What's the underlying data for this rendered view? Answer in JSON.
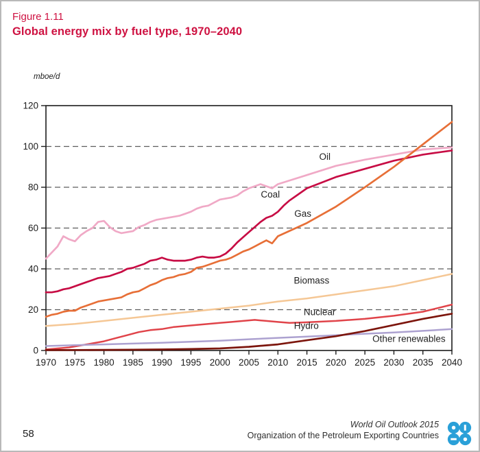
{
  "figure": {
    "label": "Figure 1.11",
    "title": "Global energy mix by fuel type, 1970–2040"
  },
  "page_number": "58",
  "footer": {
    "line1": "World Oil Outlook 2015",
    "line2": "Organization of the Petroleum Exporting Countries",
    "logo": "opec-logo"
  },
  "colors": {
    "title_red": "#ce1141",
    "axis": "#1c1c1c",
    "grid": "#5c5c5c",
    "label_text": "#222222",
    "logo_blue": "#2aa0d8",
    "page_border": "#b9b9b9"
  },
  "chart_data": {
    "type": "line",
    "title": "Global energy mix by fuel type, 1970–2040",
    "xlabel": "",
    "ylabel": "mboe/d",
    "unit_label": "mboe/d",
    "xlim": [
      1970,
      2040
    ],
    "ylim": [
      0,
      120
    ],
    "x_ticks": [
      1970,
      1975,
      1980,
      1985,
      1990,
      1995,
      2000,
      2005,
      2010,
      2015,
      2020,
      2025,
      2030,
      2035,
      2040
    ],
    "y_ticks": [
      0,
      20,
      40,
      60,
      80,
      100,
      120
    ],
    "grid": "horizontal dashed at 20,40,60,80,100; solid box frame",
    "legend_position": "inline-labels",
    "series": [
      {
        "name": "Oil",
        "color": "#f0a9c6",
        "width": 2.7,
        "label_at": {
          "year": 2018.1,
          "value": 93.4
        },
        "points": [
          [
            1970,
            45
          ],
          [
            1971,
            48
          ],
          [
            1972,
            51
          ],
          [
            1973,
            56
          ],
          [
            1974,
            54.5
          ],
          [
            1975,
            53.5
          ],
          [
            1976,
            56.5
          ],
          [
            1977,
            58.5
          ],
          [
            1978,
            60
          ],
          [
            1979,
            63
          ],
          [
            1980,
            63.5
          ],
          [
            1981,
            60.5
          ],
          [
            1982,
            58.5
          ],
          [
            1983,
            57.5
          ],
          [
            1984,
            58
          ],
          [
            1985,
            58.5
          ],
          [
            1986,
            60.5
          ],
          [
            1987,
            61.5
          ],
          [
            1988,
            63
          ],
          [
            1989,
            64
          ],
          [
            1990,
            64.5
          ],
          [
            1991,
            65
          ],
          [
            1992,
            65.5
          ],
          [
            1993,
            66
          ],
          [
            1994,
            67
          ],
          [
            1995,
            68
          ],
          [
            1996,
            69.5
          ],
          [
            1997,
            70.5
          ],
          [
            1998,
            71
          ],
          [
            1999,
            72.5
          ],
          [
            2000,
            74
          ],
          [
            2001,
            74.5
          ],
          [
            2002,
            75
          ],
          [
            2003,
            76
          ],
          [
            2004,
            78
          ],
          [
            2005,
            79.5
          ],
          [
            2006,
            80.5
          ],
          [
            2007,
            81.5
          ],
          [
            2008,
            80.5
          ],
          [
            2009,
            79.5
          ],
          [
            2010,
            81.5
          ],
          [
            2015,
            86
          ],
          [
            2020,
            90.5
          ],
          [
            2025,
            93.5
          ],
          [
            2030,
            96
          ],
          [
            2035,
            98.5
          ],
          [
            2040,
            99.5
          ]
        ]
      },
      {
        "name": "Coal",
        "color": "#c70c44",
        "width": 2.7,
        "label_at": {
          "year": 2008.7,
          "value": 75
        },
        "points": [
          [
            1970,
            28.5
          ],
          [
            1971,
            28.5
          ],
          [
            1972,
            29
          ],
          [
            1973,
            30
          ],
          [
            1974,
            30.5
          ],
          [
            1975,
            31.5
          ],
          [
            1976,
            32.5
          ],
          [
            1977,
            33.5
          ],
          [
            1978,
            34.5
          ],
          [
            1979,
            35.5
          ],
          [
            1980,
            36
          ],
          [
            1981,
            36.5
          ],
          [
            1982,
            37.5
          ],
          [
            1983,
            38.5
          ],
          [
            1984,
            40
          ],
          [
            1985,
            40.5
          ],
          [
            1986,
            41.5
          ],
          [
            1987,
            42.5
          ],
          [
            1988,
            44
          ],
          [
            1989,
            44.5
          ],
          [
            1990,
            45.5
          ],
          [
            1991,
            44.5
          ],
          [
            1992,
            44
          ],
          [
            1993,
            44
          ],
          [
            1994,
            44
          ],
          [
            1995,
            44.5
          ],
          [
            1996,
            45.5
          ],
          [
            1997,
            46
          ],
          [
            1998,
            45.5
          ],
          [
            1999,
            45.5
          ],
          [
            2000,
            46
          ],
          [
            2001,
            47.5
          ],
          [
            2002,
            50
          ],
          [
            2003,
            53
          ],
          [
            2004,
            55.5
          ],
          [
            2005,
            58
          ],
          [
            2006,
            60.5
          ],
          [
            2007,
            63
          ],
          [
            2008,
            65
          ],
          [
            2009,
            66
          ],
          [
            2010,
            68
          ],
          [
            2011,
            71
          ],
          [
            2012,
            73.5
          ],
          [
            2013,
            75.5
          ],
          [
            2015,
            79.5
          ],
          [
            2020,
            85
          ],
          [
            2025,
            89
          ],
          [
            2030,
            93
          ],
          [
            2035,
            96
          ],
          [
            2040,
            98
          ]
        ]
      },
      {
        "name": "Gas",
        "color": "#e76f37",
        "width": 2.7,
        "label_at": {
          "year": 2014.3,
          "value": 65.5
        },
        "points": [
          [
            1970,
            16.5
          ],
          [
            1971,
            17.5
          ],
          [
            1972,
            18
          ],
          [
            1973,
            19
          ],
          [
            1974,
            19.5
          ],
          [
            1975,
            19.5
          ],
          [
            1976,
            21
          ],
          [
            1977,
            22
          ],
          [
            1978,
            23
          ],
          [
            1979,
            24
          ],
          [
            1980,
            24.5
          ],
          [
            1981,
            25
          ],
          [
            1982,
            25.5
          ],
          [
            1983,
            26
          ],
          [
            1984,
            27.5
          ],
          [
            1985,
            28.5
          ],
          [
            1986,
            29
          ],
          [
            1987,
            30.5
          ],
          [
            1988,
            32
          ],
          [
            1989,
            33
          ],
          [
            1990,
            34.5
          ],
          [
            1991,
            35.5
          ],
          [
            1992,
            36
          ],
          [
            1993,
            37
          ],
          [
            1994,
            37.5
          ],
          [
            1995,
            38.5
          ],
          [
            1996,
            40.5
          ],
          [
            1997,
            41
          ],
          [
            1998,
            42
          ],
          [
            1999,
            43
          ],
          [
            2000,
            44
          ],
          [
            2001,
            44.5
          ],
          [
            2002,
            45.5
          ],
          [
            2003,
            47
          ],
          [
            2004,
            48.5
          ],
          [
            2005,
            49.5
          ],
          [
            2006,
            51
          ],
          [
            2007,
            52.5
          ],
          [
            2008,
            54
          ],
          [
            2009,
            52.5
          ],
          [
            2010,
            56
          ],
          [
            2015,
            62.5
          ],
          [
            2020,
            70.5
          ],
          [
            2025,
            80
          ],
          [
            2030,
            90
          ],
          [
            2035,
            101
          ],
          [
            2040,
            112
          ]
        ]
      },
      {
        "name": "Biomass",
        "color": "#f5c795",
        "width": 2.5,
        "label_at": {
          "year": 2015.8,
          "value": 32.8
        },
        "points": [
          [
            1970,
            12
          ],
          [
            1975,
            13
          ],
          [
            1980,
            14.5
          ],
          [
            1985,
            16
          ],
          [
            1990,
            17.5
          ],
          [
            1995,
            19
          ],
          [
            2000,
            20.5
          ],
          [
            2005,
            22
          ],
          [
            2010,
            24
          ],
          [
            2015,
            25.5
          ],
          [
            2020,
            27.5
          ],
          [
            2025,
            29.5
          ],
          [
            2030,
            31.5
          ],
          [
            2035,
            34.5
          ],
          [
            2040,
            37.5
          ]
        ]
      },
      {
        "name": "Nuclear",
        "color": "#e04349",
        "width": 2.5,
        "label_at": {
          "year": 2017.2,
          "value": 17.3
        },
        "points": [
          [
            1970,
            0.5
          ],
          [
            1972,
            1
          ],
          [
            1974,
            1.5
          ],
          [
            1976,
            2.5
          ],
          [
            1978,
            3.5
          ],
          [
            1980,
            4.5
          ],
          [
            1982,
            6
          ],
          [
            1984,
            7.5
          ],
          [
            1986,
            9
          ],
          [
            1988,
            10
          ],
          [
            1990,
            10.5
          ],
          [
            1992,
            11.5
          ],
          [
            1994,
            12
          ],
          [
            1996,
            12.5
          ],
          [
            1998,
            13
          ],
          [
            2000,
            13.5
          ],
          [
            2002,
            14
          ],
          [
            2004,
            14.5
          ],
          [
            2006,
            15
          ],
          [
            2008,
            14.5
          ],
          [
            2010,
            14
          ],
          [
            2012,
            13.5
          ],
          [
            2015,
            13.8
          ],
          [
            2020,
            14.5
          ],
          [
            2025,
            15.5
          ],
          [
            2030,
            17
          ],
          [
            2035,
            19
          ],
          [
            2040,
            22.5
          ]
        ]
      },
      {
        "name": "Hydro",
        "color": "#aca1d0",
        "width": 2.5,
        "label_at": {
          "year": 2014.9,
          "value": 10.6
        },
        "points": [
          [
            1970,
            2.2
          ],
          [
            1975,
            2.6
          ],
          [
            1980,
            3
          ],
          [
            1985,
            3.4
          ],
          [
            1990,
            3.8
          ],
          [
            1995,
            4.3
          ],
          [
            2000,
            4.8
          ],
          [
            2005,
            5.5
          ],
          [
            2010,
            6.2
          ],
          [
            2015,
            6.8
          ],
          [
            2020,
            7.5
          ],
          [
            2025,
            8.2
          ],
          [
            2030,
            8.8
          ],
          [
            2035,
            9.6
          ],
          [
            2040,
            10.5
          ]
        ]
      },
      {
        "name": "Other renewables",
        "color": "#7c150c",
        "width": 2.7,
        "label_at": {
          "year": 2032.6,
          "value": 4.2
        },
        "points": [
          [
            1970,
            0.2
          ],
          [
            1975,
            0.25
          ],
          [
            1980,
            0.3
          ],
          [
            1985,
            0.4
          ],
          [
            1990,
            0.5
          ],
          [
            1995,
            0.7
          ],
          [
            2000,
            1
          ],
          [
            2005,
            1.8
          ],
          [
            2010,
            3
          ],
          [
            2015,
            5
          ],
          [
            2020,
            7
          ],
          [
            2025,
            9.5
          ],
          [
            2030,
            12.5
          ],
          [
            2035,
            15.5
          ],
          [
            2040,
            18
          ]
        ]
      }
    ]
  }
}
